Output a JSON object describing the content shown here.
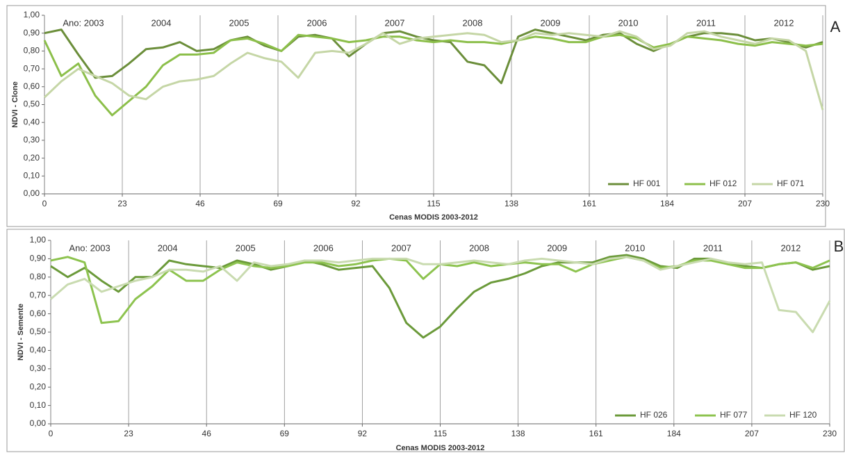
{
  "chart_data": [
    {
      "type": "line",
      "panel_label": "A",
      "ylabel": "NDVI - Clone",
      "xlabel": "Cenas MODIS 2003-2012",
      "annotations": [
        "Ano: 2003",
        "2004",
        "2005",
        "2006",
        "2007",
        "2008",
        "2009",
        "2010",
        "2011",
        "2012"
      ],
      "x": [
        0,
        5,
        10,
        15,
        20,
        25,
        30,
        35,
        40,
        45,
        50,
        55,
        60,
        65,
        70,
        75,
        80,
        85,
        90,
        95,
        100,
        105,
        110,
        115,
        120,
        125,
        130,
        135,
        140,
        145,
        150,
        155,
        160,
        165,
        170,
        175,
        180,
        185,
        190,
        195,
        200,
        205,
        210,
        215,
        220,
        225,
        230
      ],
      "series": [
        {
          "name": "HF 001",
          "color": "#6b8e3a",
          "values": [
            0.9,
            0.92,
            0.78,
            0.65,
            0.66,
            0.73,
            0.81,
            0.82,
            0.85,
            0.8,
            0.81,
            0.86,
            0.88,
            0.83,
            0.8,
            0.88,
            0.89,
            0.87,
            0.77,
            0.84,
            0.9,
            0.91,
            0.88,
            0.86,
            0.85,
            0.74,
            0.72,
            0.62,
            0.88,
            0.92,
            0.9,
            0.88,
            0.86,
            0.89,
            0.9,
            0.84,
            0.8,
            0.84,
            0.88,
            0.9,
            0.9,
            0.89,
            0.86,
            0.87,
            0.85,
            0.82,
            0.85
          ]
        },
        {
          "name": "HF 012",
          "color": "#8cbf4a",
          "values": [
            0.86,
            0.66,
            0.73,
            0.55,
            0.44,
            0.52,
            0.6,
            0.72,
            0.78,
            0.78,
            0.79,
            0.86,
            0.87,
            0.84,
            0.8,
            0.89,
            0.88,
            0.87,
            0.85,
            0.86,
            0.88,
            0.88,
            0.86,
            0.85,
            0.86,
            0.85,
            0.85,
            0.84,
            0.86,
            0.88,
            0.87,
            0.85,
            0.85,
            0.88,
            0.89,
            0.87,
            0.82,
            0.84,
            0.88,
            0.87,
            0.86,
            0.84,
            0.83,
            0.85,
            0.84,
            0.83,
            0.84
          ]
        },
        {
          "name": "HF 071",
          "color": "#c5d6a6",
          "values": [
            0.54,
            0.63,
            0.7,
            0.66,
            0.62,
            0.55,
            0.53,
            0.6,
            0.63,
            0.64,
            0.66,
            0.73,
            0.79,
            0.76,
            0.74,
            0.65,
            0.79,
            0.8,
            0.79,
            0.84,
            0.9,
            0.84,
            0.87,
            0.88,
            0.89,
            0.9,
            0.89,
            0.85,
            0.86,
            0.9,
            0.89,
            0.9,
            0.89,
            0.88,
            0.91,
            0.88,
            0.81,
            0.83,
            0.9,
            0.91,
            0.88,
            0.86,
            0.84,
            0.87,
            0.86,
            0.8,
            0.47
          ]
        }
      ],
      "xlim": [
        0,
        230
      ],
      "xticks": [
        0,
        23,
        46,
        69,
        92,
        115,
        138,
        161,
        184,
        207,
        230
      ],
      "ylim": [
        0,
        1
      ],
      "yticks": [
        {
          "value": 0,
          "label": "0,00"
        },
        {
          "value": 0.1,
          "label": "0,10"
        },
        {
          "value": 0.2,
          "label": "0,20"
        },
        {
          "value": 0.3,
          "label": "0,30"
        },
        {
          "value": 0.4,
          "label": "0,40"
        },
        {
          "value": 0.5,
          "label": "0,50"
        },
        {
          "value": 0.6,
          "label": "0,60"
        },
        {
          "value": 0.7,
          "label": "0,70"
        },
        {
          "value": 0.8,
          "label": "0,80"
        },
        {
          "value": 0.9,
          "label": "0,90"
        },
        {
          "value": 1,
          "label": "1,00"
        }
      ],
      "grid": "x",
      "legend": "bottom-right"
    },
    {
      "type": "line",
      "panel_label": "B",
      "ylabel": "NDVI - Semente",
      "xlabel": "Cenas MODIS 2003-2012",
      "annotations": [
        "Ano: 2003",
        "2004",
        "2005",
        "2006",
        "2007",
        "2008",
        "2009",
        "2010",
        "2011",
        "2012"
      ],
      "x": [
        0,
        5,
        10,
        15,
        20,
        25,
        30,
        35,
        40,
        45,
        50,
        55,
        60,
        65,
        70,
        75,
        80,
        85,
        90,
        95,
        100,
        105,
        110,
        115,
        120,
        125,
        130,
        135,
        140,
        145,
        150,
        155,
        160,
        165,
        170,
        175,
        180,
        185,
        190,
        195,
        200,
        205,
        210,
        215,
        220,
        225,
        230
      ],
      "series": [
        {
          "name": "HF 026",
          "color": "#6b9a3a",
          "values": [
            0.86,
            0.8,
            0.85,
            0.78,
            0.72,
            0.8,
            0.8,
            0.89,
            0.87,
            0.86,
            0.85,
            0.89,
            0.87,
            0.84,
            0.86,
            0.89,
            0.87,
            0.84,
            0.85,
            0.86,
            0.74,
            0.55,
            0.47,
            0.53,
            0.63,
            0.72,
            0.77,
            0.79,
            0.82,
            0.86,
            0.88,
            0.88,
            0.88,
            0.91,
            0.92,
            0.9,
            0.86,
            0.85,
            0.9,
            0.9,
            0.87,
            0.86,
            0.85,
            0.87,
            0.88,
            0.84,
            0.86
          ]
        },
        {
          "name": "HF 077",
          "color": "#8dc34f",
          "values": [
            0.89,
            0.91,
            0.88,
            0.55,
            0.56,
            0.68,
            0.75,
            0.84,
            0.78,
            0.78,
            0.84,
            0.88,
            0.86,
            0.85,
            0.86,
            0.88,
            0.88,
            0.86,
            0.87,
            0.89,
            0.9,
            0.89,
            0.79,
            0.87,
            0.86,
            0.88,
            0.86,
            0.87,
            0.88,
            0.87,
            0.87,
            0.83,
            0.87,
            0.89,
            0.91,
            0.89,
            0.85,
            0.86,
            0.89,
            0.89,
            0.87,
            0.85,
            0.85,
            0.87,
            0.88,
            0.85,
            0.89
          ]
        },
        {
          "name": "HF 120",
          "color": "#c9dbb0",
          "values": [
            0.68,
            0.76,
            0.79,
            0.72,
            0.75,
            0.78,
            0.8,
            0.84,
            0.84,
            0.83,
            0.86,
            0.78,
            0.88,
            0.86,
            0.87,
            0.89,
            0.89,
            0.88,
            0.89,
            0.9,
            0.9,
            0.9,
            0.87,
            0.87,
            0.88,
            0.89,
            0.88,
            0.87,
            0.89,
            0.9,
            0.89,
            0.88,
            0.87,
            0.9,
            0.91,
            0.89,
            0.84,
            0.86,
            0.88,
            0.9,
            0.88,
            0.87,
            0.88,
            0.62,
            0.61,
            0.5,
            0.67
          ]
        }
      ],
      "xlim": [
        0,
        230
      ],
      "xticks": [
        0,
        23,
        46,
        69,
        92,
        115,
        138,
        161,
        184,
        207,
        230
      ],
      "ylim": [
        0,
        1
      ],
      "yticks": [
        {
          "value": 0,
          "label": "0,00"
        },
        {
          "value": 0.1,
          "label": "0,10"
        },
        {
          "value": 0.2,
          "label": "0,20"
        },
        {
          "value": 0.3,
          "label": "0,30"
        },
        {
          "value": 0.4,
          "label": "0,40"
        },
        {
          "value": 0.5,
          "label": "0,50"
        },
        {
          "value": 0.6,
          "label": "0,60"
        },
        {
          "value": 0.7,
          "label": "0,70"
        },
        {
          "value": 0.8,
          "label": "0,80"
        },
        {
          "value": 0.9,
          "label": "0,90"
        },
        {
          "value": 1,
          "label": "1,00"
        }
      ],
      "grid": "x",
      "legend": "bottom-right"
    }
  ]
}
